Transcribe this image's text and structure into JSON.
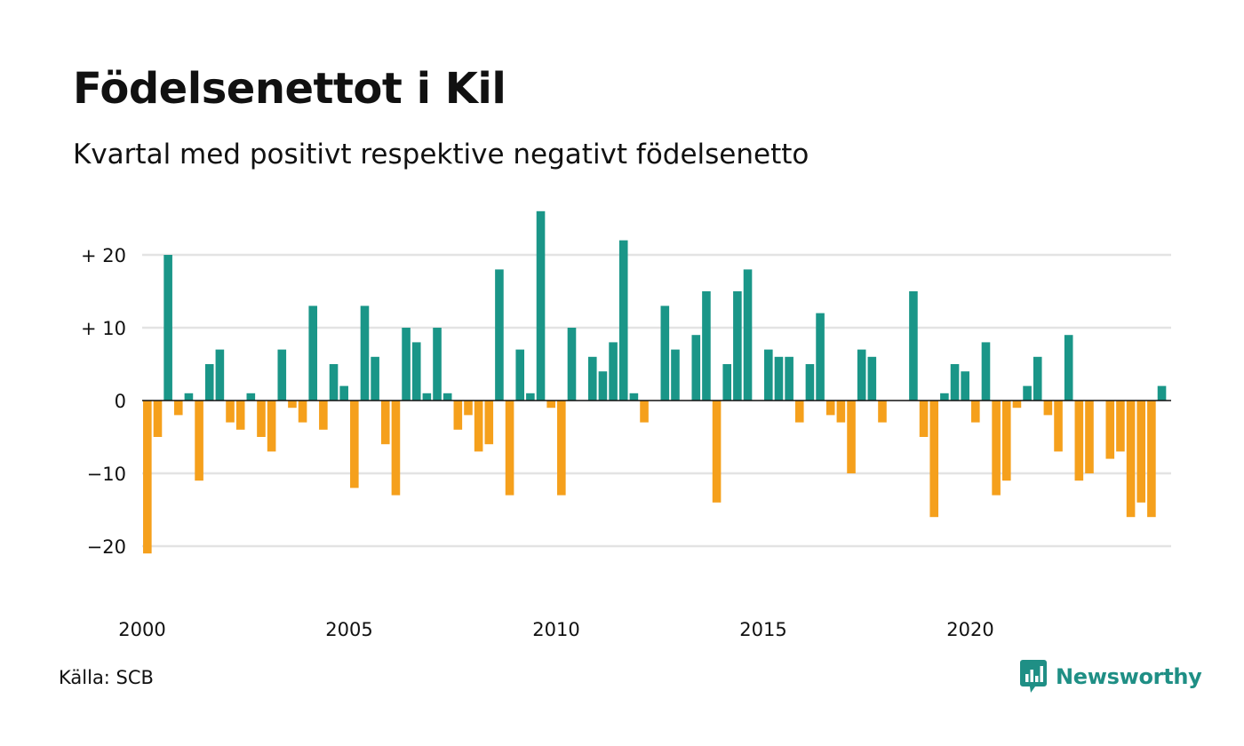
{
  "title": "Födelsenettot i Kil",
  "subtitle": "Kvartal med positivt respektive negativt födelsenetto",
  "source": "Källa: SCB",
  "brand": {
    "name": "Newsworthy",
    "logo_icon": "newsworthy-chart-bubble-icon",
    "color": "#1f8f85"
  },
  "colors": {
    "positive": "#1a9688",
    "negative": "#f5a01c",
    "grid": "#e3e3e3",
    "zero_line": "#111111"
  },
  "chart_data": {
    "type": "bar",
    "title": "Födelsenettot i Kil",
    "subtitle": "Kvartal med positivt respektive negativt födelsenetto",
    "xlabel": "",
    "ylabel": "",
    "x_start": "2000 Q1",
    "x_step": "quarter",
    "x_ticks": [
      "2000",
      "2005",
      "2010",
      "2015",
      "2020"
    ],
    "y_ticks": [
      {
        "value": 20,
        "label": "+ 20"
      },
      {
        "value": 10,
        "label": "+ 10"
      },
      {
        "value": 0,
        "label": "0"
      },
      {
        "value": -10,
        "label": "−10"
      },
      {
        "value": -20,
        "label": "−20"
      }
    ],
    "ylim": [
      -25,
      26
    ],
    "grid": true,
    "legend": "none",
    "values": [
      -21,
      -5,
      20,
      -2,
      1,
      -11,
      5,
      7,
      -3,
      -4,
      1,
      -5,
      -7,
      7,
      -1,
      -3,
      13,
      -4,
      5,
      2,
      -12,
      13,
      6,
      -6,
      -13,
      10,
      8,
      1,
      10,
      1,
      -4,
      -2,
      -7,
      -6,
      18,
      -13,
      7,
      1,
      26,
      -1,
      -13,
      10,
      0,
      6,
      4,
      8,
      22,
      1,
      -3,
      0,
      13,
      7,
      0,
      9,
      15,
      -14,
      5,
      15,
      18,
      0,
      7,
      6,
      6,
      -3,
      5,
      12,
      -2,
      -3,
      -10,
      7,
      6,
      -3,
      0,
      0,
      15,
      -5,
      -16,
      1,
      5,
      4,
      -3,
      8,
      -13,
      -11,
      -1,
      2,
      6,
      -2,
      -7,
      9,
      -11,
      -10,
      0,
      -8,
      -7,
      -16,
      -14,
      -16,
      2
    ]
  }
}
